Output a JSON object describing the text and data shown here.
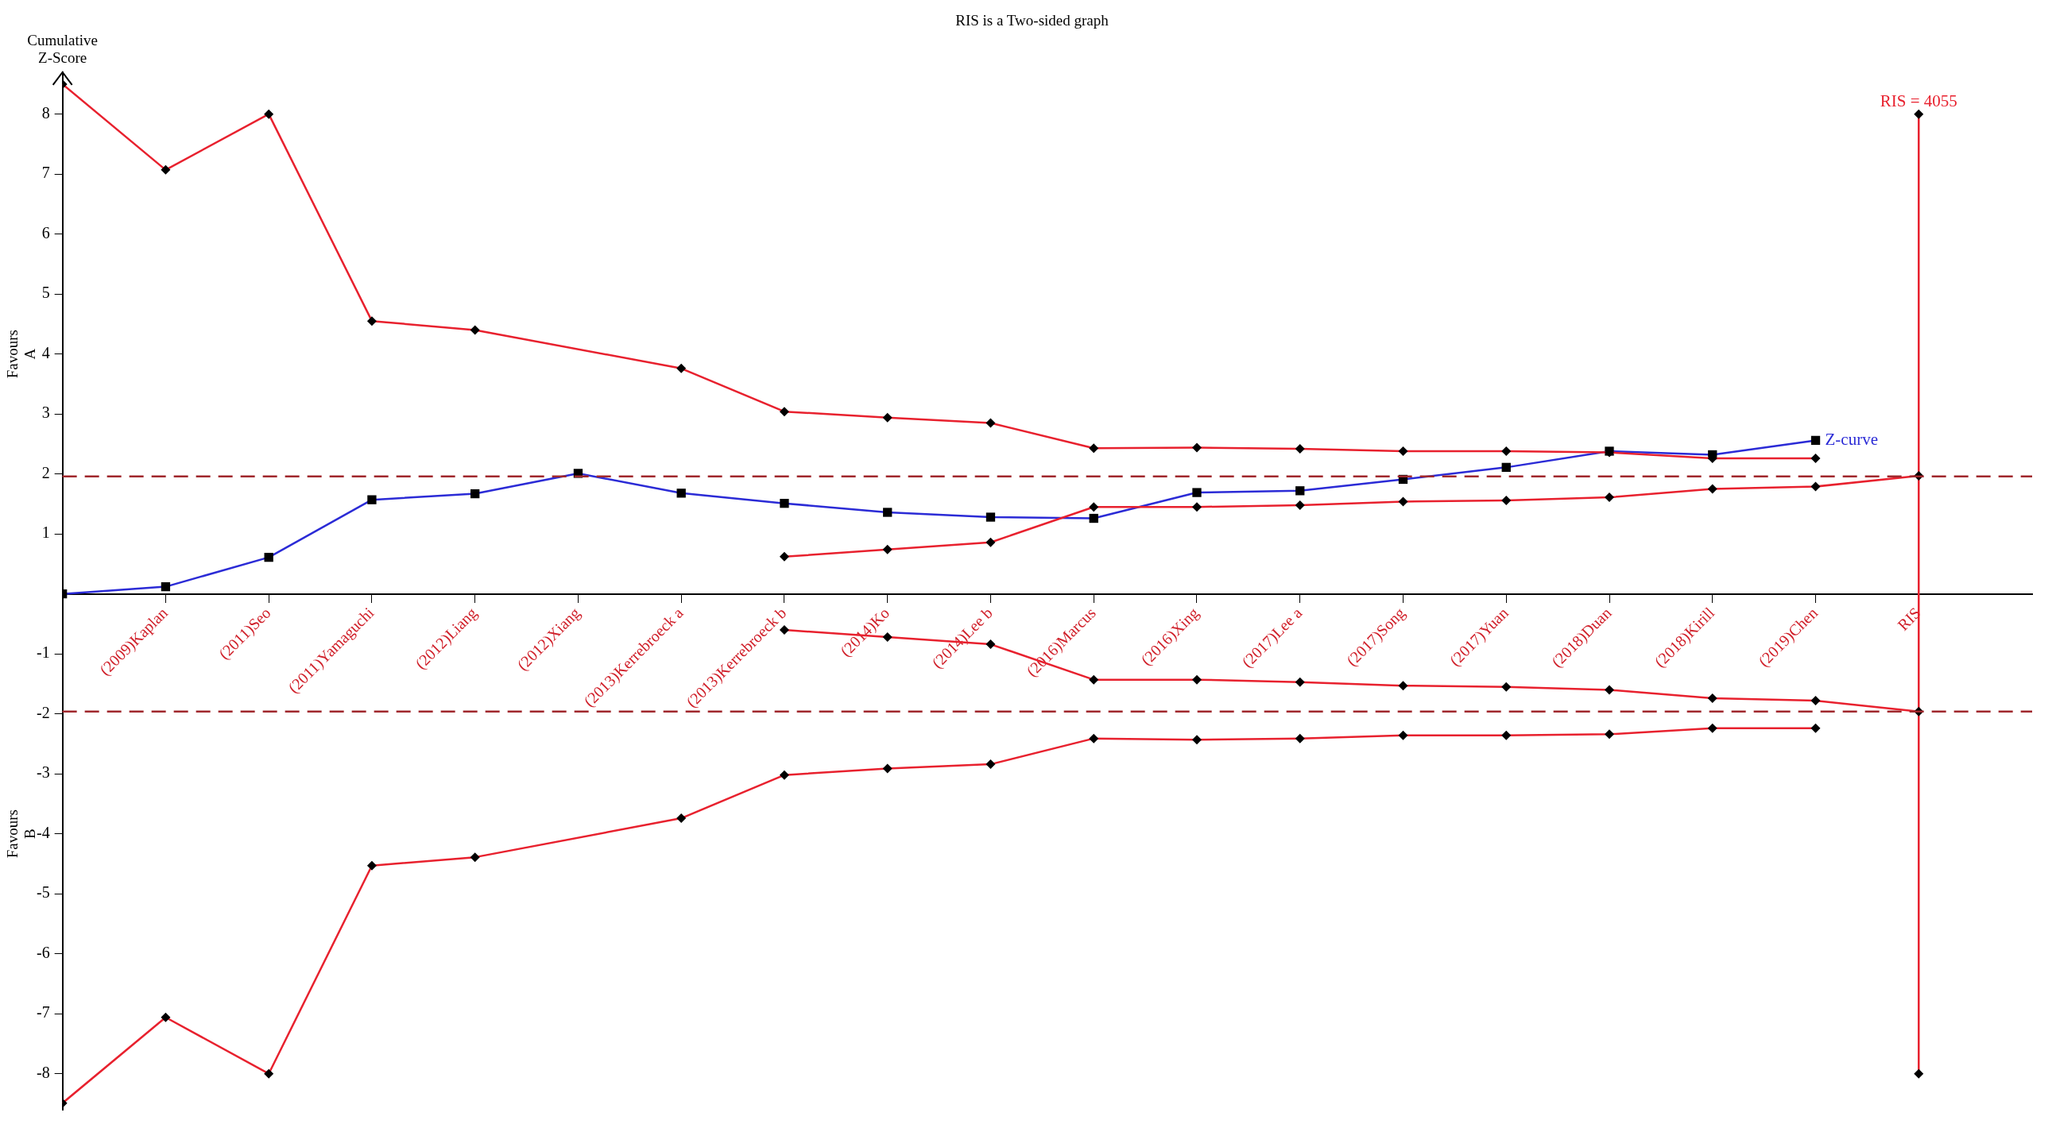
{
  "chart_data": {
    "type": "line",
    "title": "RIS is a Two-sided graph",
    "ylabel": "Cumulative Z-Score",
    "annotations": [
      "Favours A",
      "Favours B",
      {
        "text": "RIS = 4055",
        "x": "RIS",
        "y": 8
      }
    ],
    "categories": [
      null,
      "(2009)Kaplan",
      "(2011)Seo",
      "(2011)Yamaguchi",
      "(2012)Liang",
      "(2012)Xiang",
      "(2013)Kerrebroeck a",
      "(2013)Kerrebroeck b",
      "(2014)Ko",
      "(2014)Lee b",
      "(2016)Marcus",
      "(2016)Xing",
      "(2017)Lee a",
      "(2017)Song",
      "(2017)Yuan",
      "(2018)Duan",
      "(2018)Kirill",
      "(2019)Chen",
      "RIS"
    ],
    "ylim": [
      -8.6,
      8.7
    ],
    "yticks": [
      -8,
      -7,
      -6,
      -5,
      -4,
      -3,
      -2,
      -1,
      1,
      2,
      3,
      4,
      5,
      6,
      7,
      8
    ],
    "grid": false,
    "ref_lines": [
      {
        "axis": "y",
        "value": 1.96,
        "color": "#a0282d",
        "line_style": "dashed"
      },
      {
        "axis": "y",
        "value": -1.96,
        "color": "#a0282d",
        "line_style": "dashed"
      }
    ],
    "series": [
      {
        "color": "#e8212e",
        "marker": "diamond",
        "values": [
          8.5,
          7.07,
          8,
          4.55,
          4.4,
          null,
          3.76,
          3.04,
          2.94,
          2.85,
          2.43,
          2.44,
          2.42,
          2.38,
          2.38,
          2.36,
          2.26,
          2.26,
          null
        ]
      },
      {
        "color": "#e8212e",
        "marker": "diamond",
        "values": [
          -8.49,
          -7.06,
          -8,
          -4.53,
          -4.39,
          null,
          -3.74,
          -3.02,
          -2.91,
          -2.84,
          -2.41,
          -2.43,
          -2.41,
          -2.36,
          -2.36,
          -2.34,
          -2.24,
          -2.24,
          null
        ]
      },
      {
        "color": "#e8212e",
        "marker": "diamond",
        "values": [
          null,
          null,
          null,
          null,
          null,
          null,
          null,
          0.62,
          0.74,
          0.86,
          1.45,
          1.45,
          1.48,
          1.54,
          1.56,
          1.61,
          1.75,
          1.79,
          1.97
        ]
      },
      {
        "color": "#e8212e",
        "marker": "diamond",
        "values": [
          null,
          null,
          null,
          null,
          null,
          null,
          null,
          -0.6,
          -0.72,
          -0.84,
          -1.43,
          -1.43,
          -1.47,
          -1.53,
          -1.55,
          -1.6,
          -1.74,
          -1.78,
          -1.96
        ]
      },
      {
        "name": "Z-curve",
        "color": "#2b2bd6",
        "marker": "square",
        "values": [
          0,
          0.12,
          0.61,
          1.57,
          1.67,
          2.01,
          1.68,
          1.51,
          1.36,
          1.28,
          1.26,
          1.69,
          1.72,
          1.91,
          2.11,
          2.38,
          2.32,
          2.56,
          null
        ]
      },
      {
        "color": "#e8212e",
        "marker": "diamond",
        "x": [
          "RIS",
          "RIS"
        ],
        "values": [
          -8,
          8
        ]
      }
    ]
  }
}
